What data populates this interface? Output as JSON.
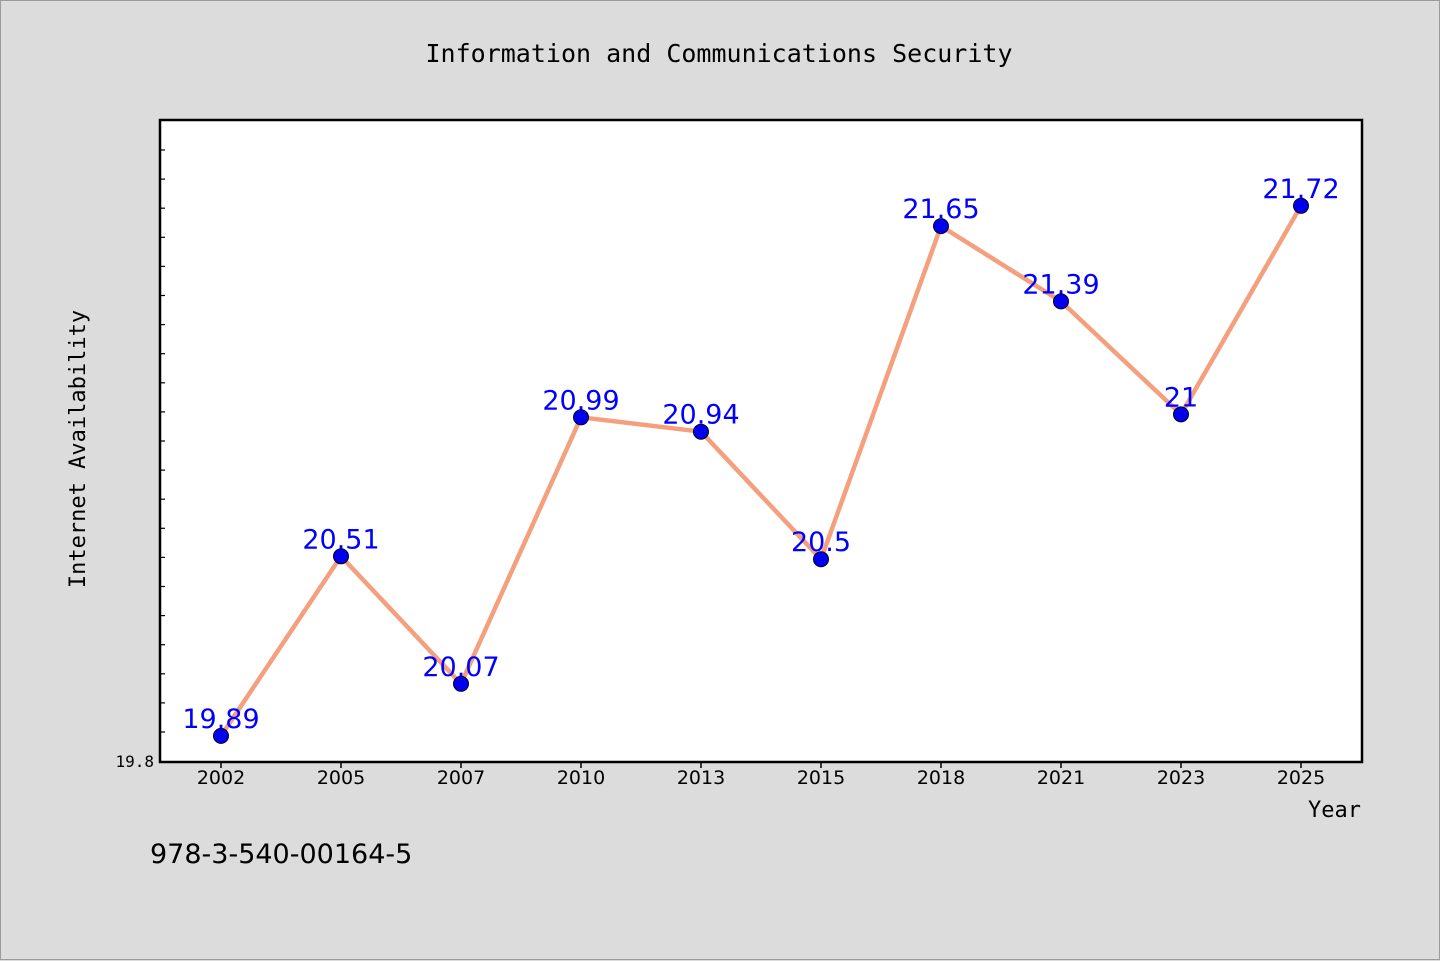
{
  "chart_data": {
    "type": "line",
    "title": "Information and Communications Security",
    "xlabel": "Year",
    "ylabel": "Internet Availability",
    "categories": [
      "2002",
      "2005",
      "2007",
      "2010",
      "2013",
      "2015",
      "2018",
      "2021",
      "2023",
      "2025"
    ],
    "series": [
      {
        "values": [
          19.89,
          20.51,
          20.07,
          20.99,
          20.94,
          20.5,
          21.65,
          21.39,
          21,
          21.72
        ],
        "labels": [
          "19.89",
          "20.51",
          "20.07",
          "20.99",
          "20.94",
          "20.5",
          "21.65",
          "21.39",
          "21",
          "21.72"
        ],
        "line_color": "#f4a07e",
        "marker_color": "#0000ee",
        "label_color": "#0000ff"
      }
    ],
    "y_tick_labels": [
      "19.8"
    ],
    "ylim": [
      19.8,
      22.0
    ],
    "grid": false,
    "legend": "none"
  },
  "footer": {
    "isbn": "978-3-540-00164-5"
  }
}
